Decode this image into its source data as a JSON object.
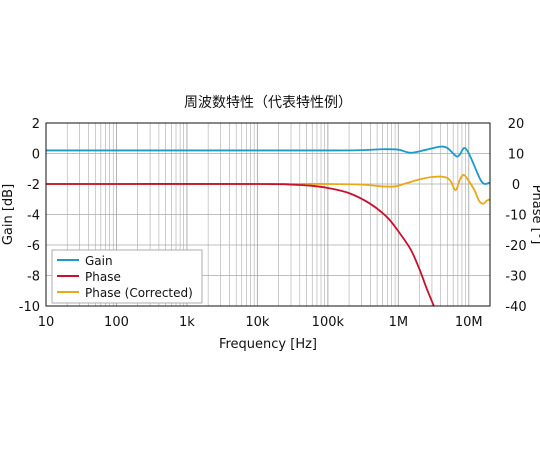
{
  "chart_data": {
    "type": "line",
    "title": "周波数特性（代表特性例）",
    "xlabel": "Frequency [Hz]",
    "ylabel_left": "Gain [dB]",
    "ylabel_right": "Phase [°]",
    "x_scale": "log",
    "xlim": [
      10,
      20000000
    ],
    "ylim_left": [
      -10,
      2
    ],
    "ylim_right": [
      -40,
      20
    ],
    "x_ticks": [
      {
        "value": 10,
        "label": "10"
      },
      {
        "value": 100,
        "label": "100"
      },
      {
        "value": 1000,
        "label": "1k"
      },
      {
        "value": 10000,
        "label": "10k"
      },
      {
        "value": 100000,
        "label": "100k"
      },
      {
        "value": 1000000,
        "label": "1M"
      },
      {
        "value": 10000000,
        "label": "10M"
      }
    ],
    "y_ticks_left": [
      2,
      0,
      -2,
      -4,
      -6,
      -8,
      -10
    ],
    "y_ticks_right": [
      20,
      10,
      0,
      -10,
      -20,
      -30,
      -40
    ],
    "grid": true,
    "legend_position": "bottom-left",
    "series": [
      {
        "name": "Gain",
        "axis": "left",
        "color": "#1a9bc9",
        "x": [
          10,
          1000,
          100000,
          300000,
          600000,
          1000000,
          1500000,
          2500000,
          4000000,
          5000000,
          6000000,
          6800000,
          7500000,
          8500000,
          9500000,
          11000000,
          13000000,
          15000000,
          17000000,
          20000000
        ],
        "y": [
          0.2,
          0.2,
          0.2,
          0.22,
          0.28,
          0.25,
          0.05,
          0.25,
          0.45,
          0.35,
          0.0,
          -0.2,
          -0.05,
          0.35,
          0.2,
          -0.4,
          -1.2,
          -1.8,
          -2.0,
          -1.9
        ]
      },
      {
        "name": "Phase",
        "axis": "right",
        "color": "#c8102e",
        "x": [
          10,
          10000,
          30000,
          60000,
          100000,
          200000,
          400000,
          700000,
          1000000,
          1500000,
          2000000,
          2500000,
          3000000,
          3200000
        ],
        "y": [
          0,
          0,
          -0.2,
          -0.6,
          -1.3,
          -3.0,
          -6.5,
          -11.0,
          -15.5,
          -21.5,
          -28.0,
          -34.0,
          -38.5,
          -40.0
        ]
      },
      {
        "name": "Phase (Corrected)",
        "axis": "right",
        "color": "#e8a817",
        "x": [
          10,
          10000,
          100000,
          300000,
          600000,
          900000,
          1200000,
          2000000,
          3000000,
          4500000,
          5500000,
          6500000,
          7500000,
          8500000,
          10000000,
          12000000,
          14000000,
          16000000,
          18000000,
          20000000
        ],
        "y": [
          0,
          0,
          0,
          -0.2,
          -0.8,
          -0.8,
          0.0,
          1.5,
          2.3,
          2.3,
          1.0,
          -2.0,
          1.5,
          3.0,
          1.0,
          -2.0,
          -5.5,
          -6.5,
          -5.5,
          -5.0
        ]
      }
    ]
  }
}
